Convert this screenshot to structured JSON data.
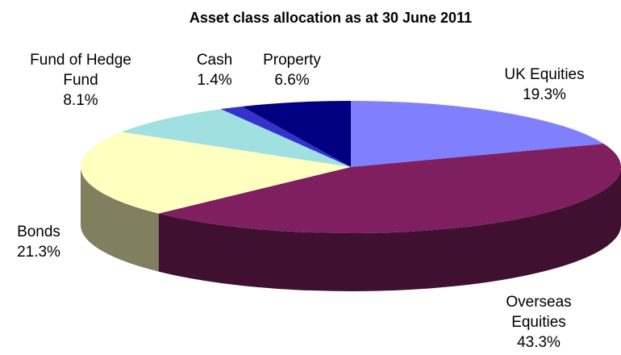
{
  "chart_data": {
    "type": "pie3d",
    "title": "Asset class allocation as at 30 June 2011",
    "categories": [
      "UK Equities",
      "Overseas Equities",
      "Bonds",
      "Fund of Hedge Fund",
      "Cash",
      "Property"
    ],
    "values": [
      19.3,
      43.3,
      21.3,
      8.1,
      1.4,
      6.6
    ],
    "value_labels": [
      "19.3%",
      "43.3%",
      "21.3%",
      "8.1%",
      "1.4%",
      "6.6%"
    ],
    "colors": [
      "#8080ff",
      "#7f1f5f",
      "#ffffc0",
      "#a0e0e0",
      "#3333cc",
      "#000080"
    ]
  }
}
